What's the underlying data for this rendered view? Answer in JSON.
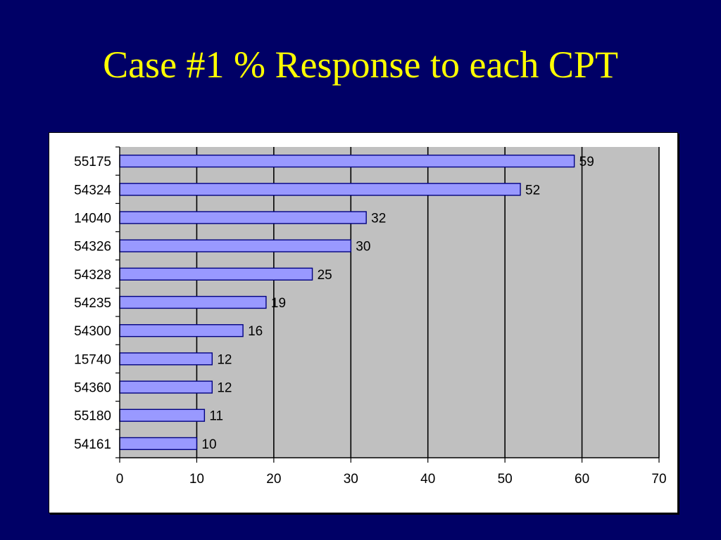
{
  "slide": {
    "title": "Case #1 % Response to each CPT"
  },
  "colors": {
    "background": "#000066",
    "title": "#ffff00",
    "plot_area": "#c0c0c0",
    "bar_fill": "#9999ff",
    "bar_stroke": "#000080"
  },
  "chart_data": {
    "type": "bar",
    "orientation": "horizontal",
    "categories": [
      "55175",
      "54324",
      "14040",
      "54326",
      "54328",
      "54235",
      "54300",
      "15740",
      "54360",
      "55180",
      "54161"
    ],
    "values": [
      59,
      52,
      32,
      30,
      25,
      19,
      16,
      12,
      12,
      11,
      10
    ],
    "data_labels": [
      "59",
      "52",
      "32",
      "30",
      "25",
      "19",
      "16",
      "12",
      "12",
      "11",
      "10"
    ],
    "xlim": [
      0,
      70
    ],
    "x_ticks": [
      0,
      10,
      20,
      30,
      40,
      50,
      60,
      70
    ],
    "x_tick_labels": [
      "0",
      "10",
      "20",
      "30",
      "40",
      "50",
      "60",
      "70"
    ],
    "grid": "vertical major gridlines",
    "legend": "none",
    "xlabel": "",
    "ylabel": ""
  }
}
